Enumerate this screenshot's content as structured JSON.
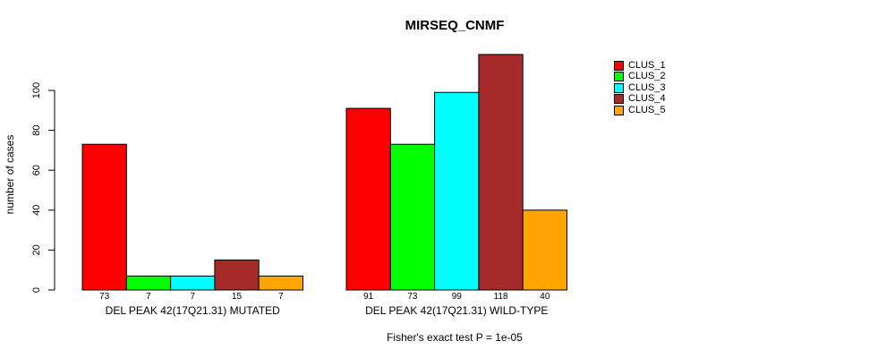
{
  "chart_data": {
    "type": "bar",
    "title": "MIRSEQ_CNMF",
    "ylabel": "number of cases",
    "xlabel": "",
    "footnote": "Fisher's exact test P = 1e-05",
    "categories": [
      "DEL PEAK 42(17Q21.31) MUTATED",
      "DEL PEAK 42(17Q21.31) WILD-TYPE"
    ],
    "series": [
      {
        "name": "CLUS_1",
        "color": "#FF0000",
        "values": [
          73,
          91
        ]
      },
      {
        "name": "CLUS_2",
        "color": "#00FF00",
        "values": [
          7,
          73
        ]
      },
      {
        "name": "CLUS_3",
        "color": "#00FFFF",
        "values": [
          7,
          99
        ]
      },
      {
        "name": "CLUS_4",
        "color": "#A52A2A",
        "values": [
          15,
          118
        ]
      },
      {
        "name": "CLUS_5",
        "color": "#FFA500",
        "values": [
          7,
          40
        ]
      }
    ],
    "value_labels": [
      [
        73,
        7,
        7,
        15,
        7
      ],
      [
        91,
        73,
        99,
        118,
        40
      ]
    ],
    "yticks": [
      0,
      20,
      40,
      60,
      80,
      100
    ],
    "ylim": [
      0,
      120
    ],
    "grid": false,
    "legend_position": "top-right",
    "bar_border_color": "#000000",
    "axis_color": "#000000",
    "background_color": "#FFFFFF"
  }
}
